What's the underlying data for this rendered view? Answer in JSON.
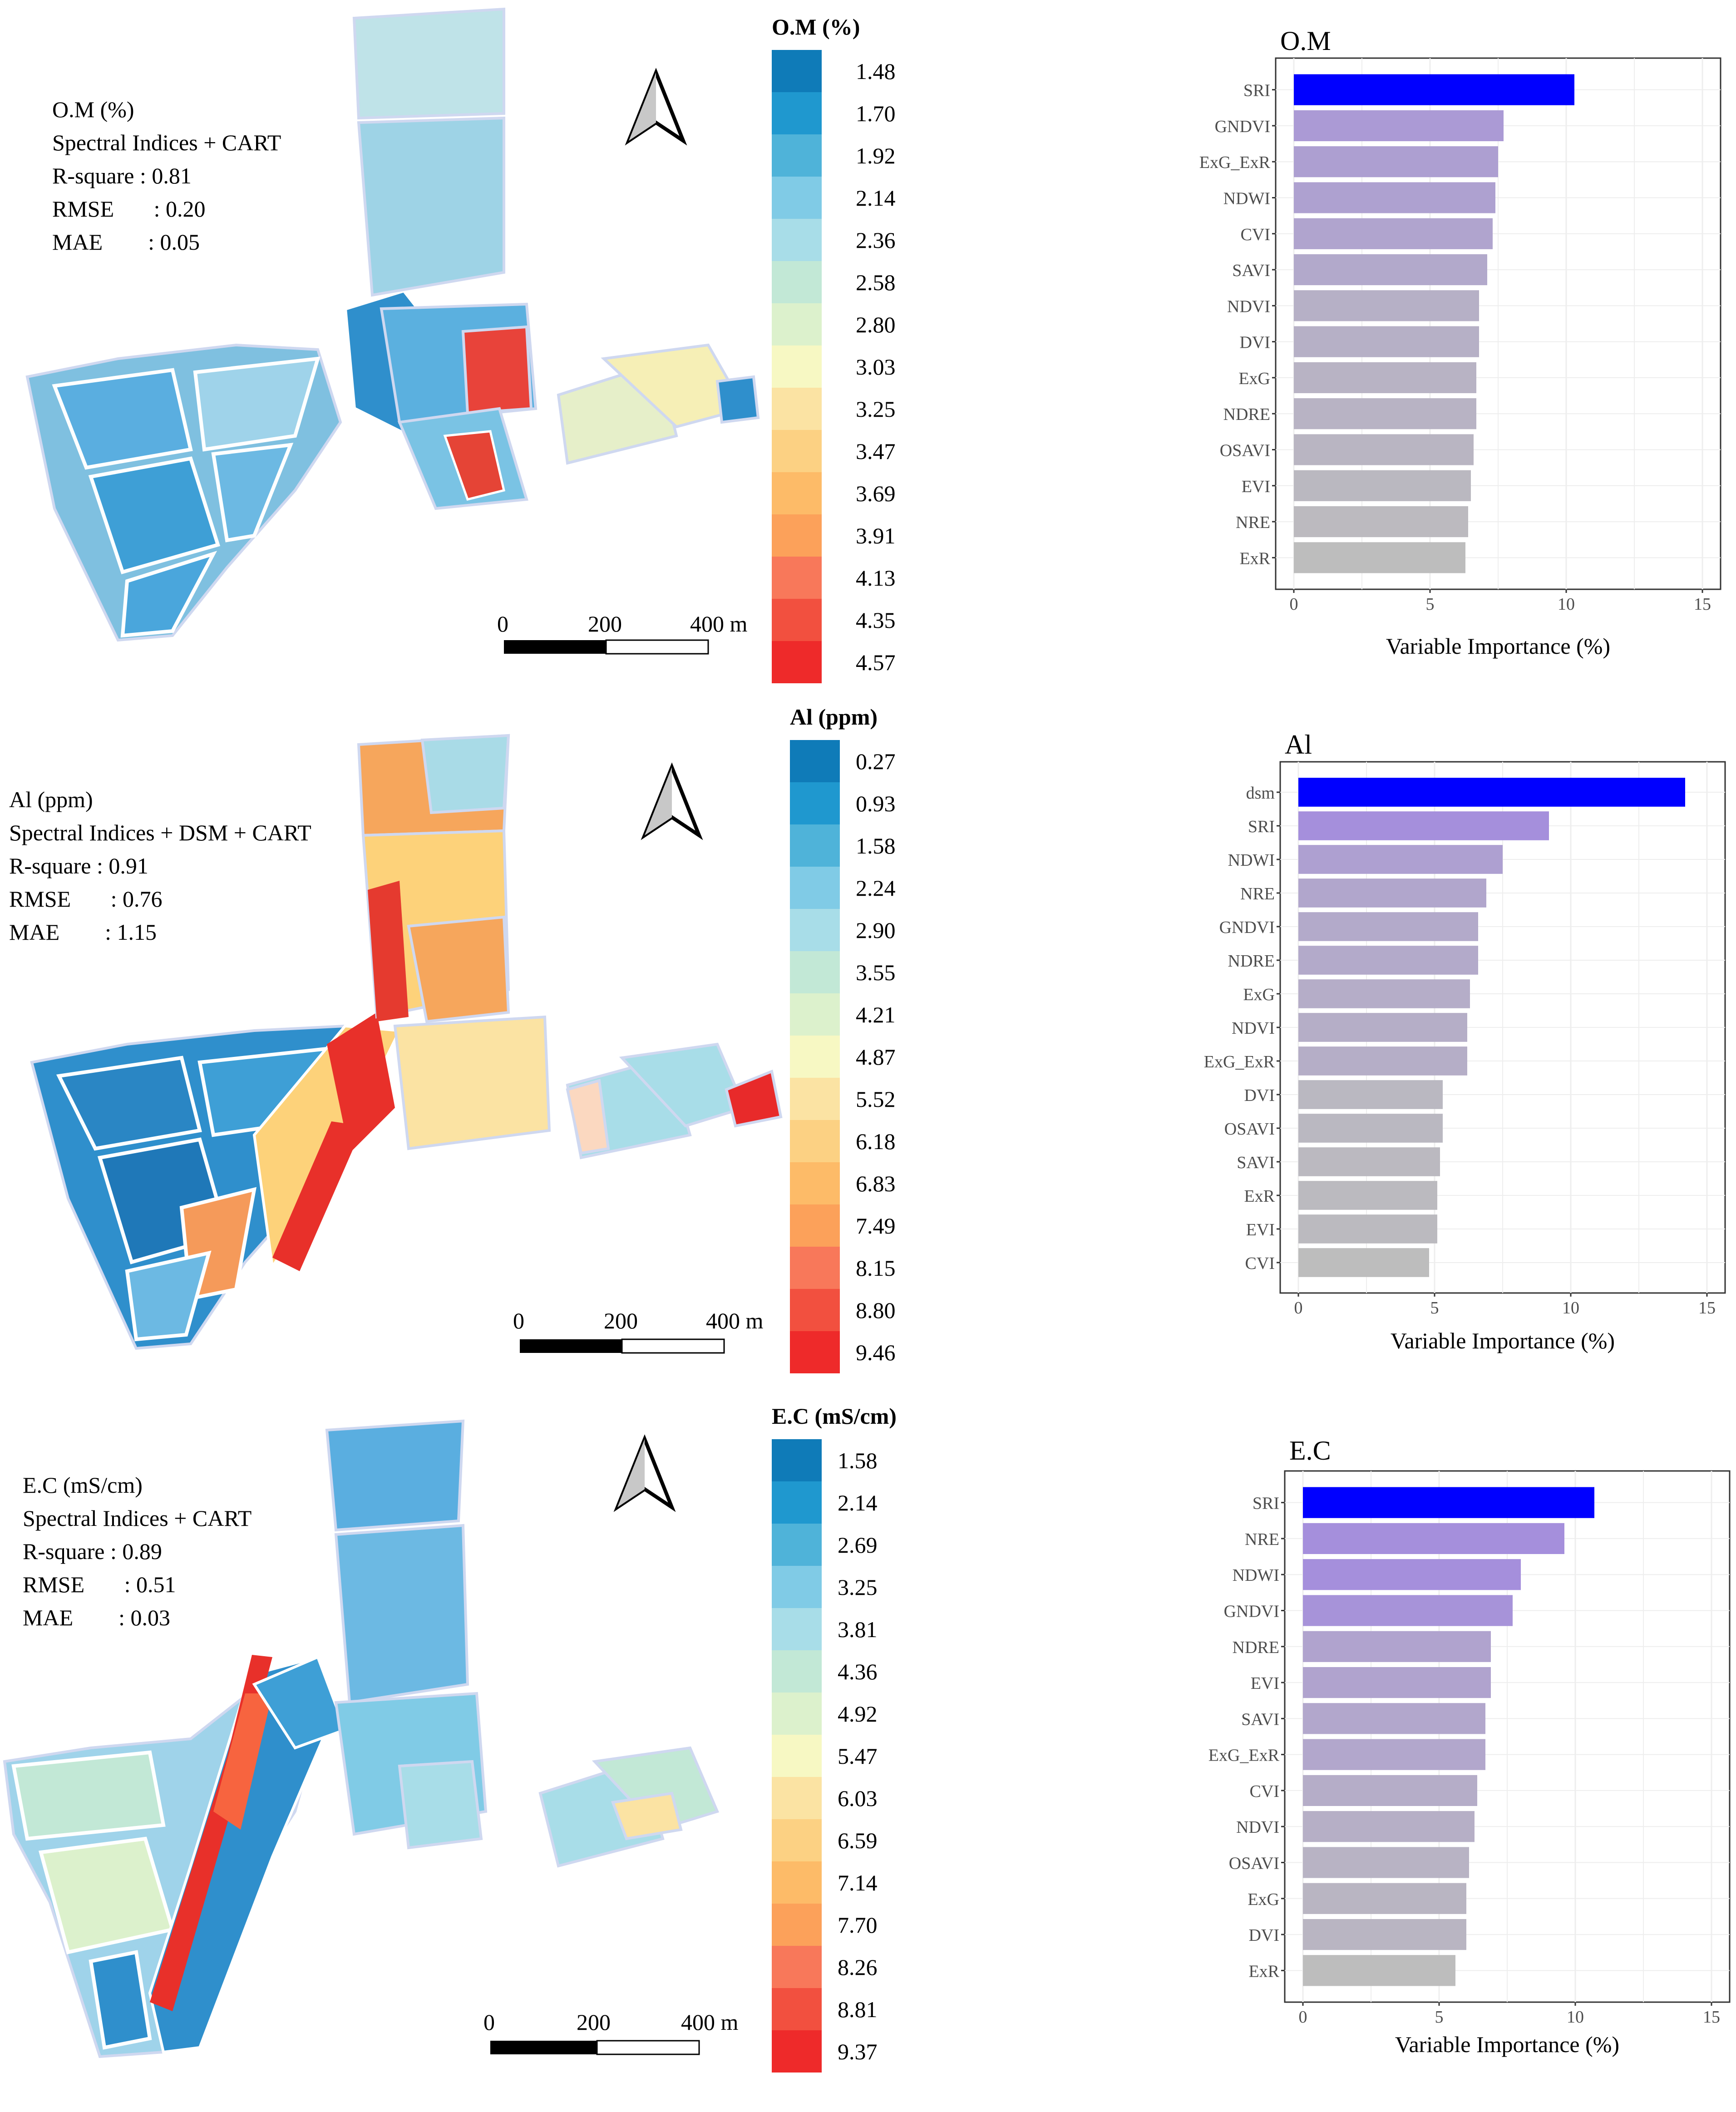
{
  "colors": {
    "legend_palette": [
      "#0f7bb8",
      "#1f98cf",
      "#4fb3d9",
      "#80cbe6",
      "#a8dde8",
      "#c2e8d6",
      "#dcf1cc",
      "#f7f8c3",
      "#fbe3a3",
      "#fcd183",
      "#fdbb68",
      "#fca15a",
      "#f8785a",
      "#f2503f",
      "#ee2a2a"
    ],
    "bar_top": "#0000ff",
    "bar_purple": "#a58fdc",
    "bar_grey": "#bdbdbd",
    "panel_border": "#333333",
    "grid": "#eeeeee"
  },
  "panels": [
    {
      "id": "om",
      "stats": {
        "variable": "O.M (%)",
        "method": "Spectral Indices + CART",
        "r_square": "R-square : 0.81",
        "rmse": "RMSE       : 0.20",
        "mae": "MAE        : 0.05"
      },
      "legend": {
        "title": "O.M (%)",
        "values": [
          "1.48",
          "1.70",
          "1.92",
          "2.14",
          "2.36",
          "2.58",
          "2.80",
          "3.03",
          "3.25",
          "3.47",
          "3.69",
          "3.91",
          "4.13",
          "4.35",
          "4.57"
        ]
      },
      "scalebar": {
        "labels": [
          "0",
          "200",
          "400 m"
        ]
      }
    },
    {
      "id": "al",
      "stats": {
        "variable": "Al (ppm)",
        "method": "Spectral Indices + DSM + CART",
        "r_square": "R-square : 0.91",
        "rmse": "RMSE       : 0.76",
        "mae": "MAE        : 1.15"
      },
      "legend": {
        "title": "Al (ppm)",
        "values": [
          "0.27",
          "0.93",
          "1.58",
          "2.24",
          "2.90",
          "3.55",
          "4.21",
          "4.87",
          "5.52",
          "6.18",
          "6.83",
          "7.49",
          "8.15",
          "8.80",
          "9.46"
        ]
      },
      "scalebar": {
        "labels": [
          "0",
          "200",
          "400 m"
        ]
      }
    },
    {
      "id": "ec",
      "stats": {
        "variable": "E.C (mS/cm)",
        "method": "Spectral Indices + CART",
        "r_square": "R-square : 0.89",
        "rmse": "RMSE       : 0.51",
        "mae": "MAE        : 0.03"
      },
      "legend": {
        "title": "E.C (mS/cm)",
        "values": [
          "1.58",
          "2.14",
          "2.69",
          "3.25",
          "3.81",
          "4.36",
          "4.92",
          "5.47",
          "6.03",
          "6.59",
          "7.14",
          "7.70",
          "8.26",
          "8.81",
          "9.37"
        ]
      },
      "scalebar": {
        "labels": [
          "0",
          "200",
          "400 m"
        ]
      }
    }
  ],
  "chart_data": [
    {
      "type": "bar",
      "orientation": "horizontal",
      "title": "O.M",
      "xlabel": "Variable Importance (%)",
      "ylabel": "",
      "xlim": [
        0,
        15
      ],
      "xticks": [
        "0",
        "5",
        "10",
        "15"
      ],
      "grid": true,
      "categories": [
        "SRI",
        "GNDVI",
        "ExG_ExR",
        "NDWI",
        "CVI",
        "SAVI",
        "NDVI",
        "DVI",
        "ExG",
        "NDRE",
        "OSAVI",
        "EVI",
        "NRE",
        "ExR"
      ],
      "values": [
        10.3,
        7.7,
        7.5,
        7.4,
        7.3,
        7.1,
        6.8,
        6.8,
        6.7,
        6.7,
        6.6,
        6.5,
        6.4,
        6.3
      ]
    },
    {
      "type": "bar",
      "orientation": "horizontal",
      "title": "Al",
      "xlabel": "Variable Importance (%)",
      "ylabel": "",
      "xlim": [
        0,
        15
      ],
      "xticks": [
        "0",
        "5",
        "10",
        "15"
      ],
      "grid": true,
      "categories": [
        "dsm",
        "SRI",
        "NDWI",
        "NRE",
        "GNDVI",
        "NDRE",
        "ExG",
        "NDVI",
        "ExG_ExR",
        "DVI",
        "OSAVI",
        "SAVI",
        "ExR",
        "EVI",
        "CVI"
      ],
      "values": [
        14.2,
        9.2,
        7.5,
        6.9,
        6.6,
        6.6,
        6.3,
        6.2,
        6.2,
        5.3,
        5.3,
        5.2,
        5.1,
        5.1,
        4.8
      ]
    },
    {
      "type": "bar",
      "orientation": "horizontal",
      "title": "E.C",
      "xlabel": "Variable Importance (%)",
      "ylabel": "",
      "xlim": [
        0,
        15
      ],
      "xticks": [
        "0",
        "5",
        "10",
        "15"
      ],
      "grid": true,
      "categories": [
        "SRI",
        "NRE",
        "NDWI",
        "GNDVI",
        "NDRE",
        "EVI",
        "SAVI",
        "ExG_ExR",
        "CVI",
        "NDVI",
        "OSAVI",
        "ExG",
        "DVI",
        "ExR"
      ],
      "values": [
        10.7,
        9.6,
        8.0,
        7.7,
        6.9,
        6.9,
        6.7,
        6.7,
        6.4,
        6.3,
        6.1,
        6.0,
        6.0,
        5.6
      ]
    }
  ]
}
